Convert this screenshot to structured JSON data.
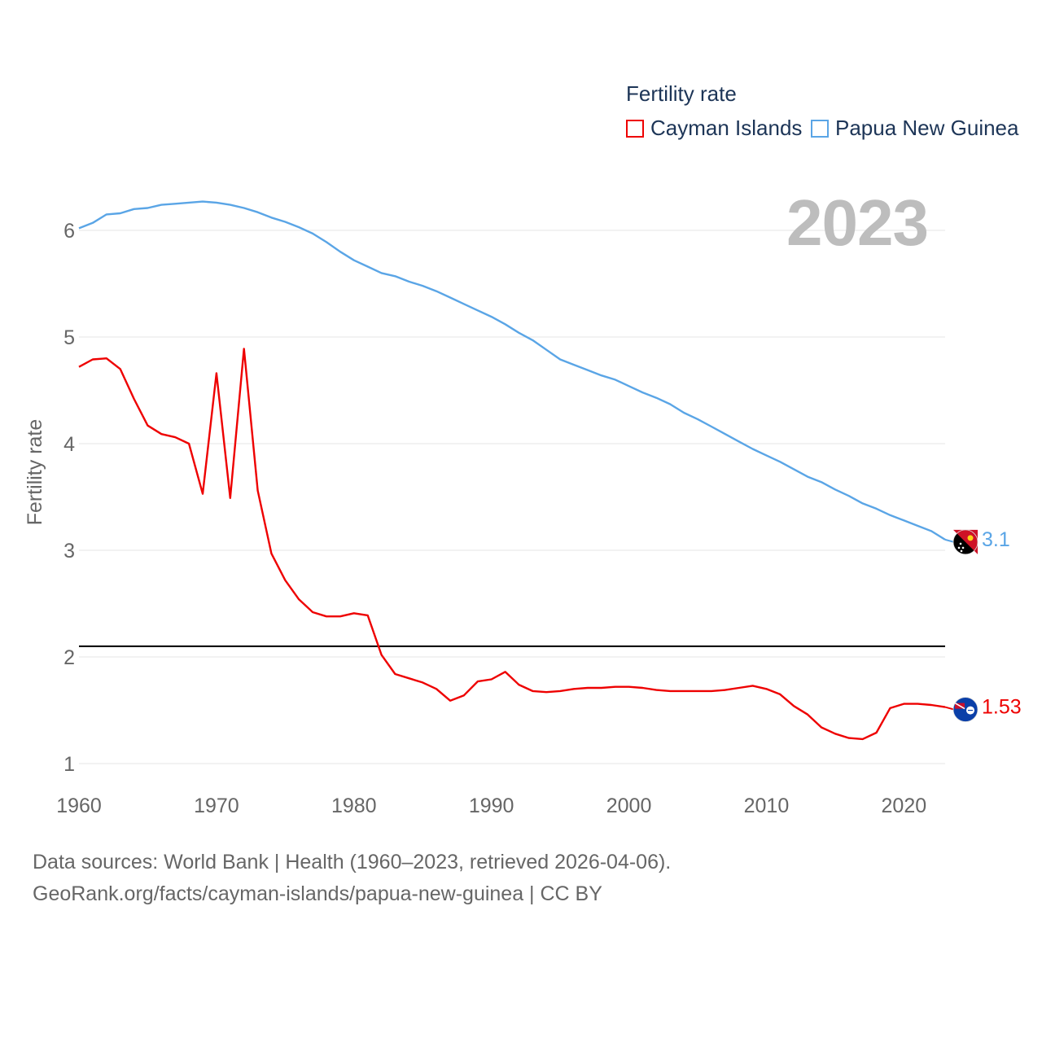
{
  "legend": {
    "title": "Fertility rate",
    "items": [
      {
        "label": "Cayman Islands",
        "color": "#ee0000"
      },
      {
        "label": "Papua New Guinea",
        "color": "#5aa5e6"
      }
    ]
  },
  "year_label": "2023",
  "footer": {
    "line1": "Data sources: World Bank | Health (1960–2023, retrieved 2026-04-06).",
    "line2": "GeoRank.org/facts/cayman-islands/papua-new-guinea | CC BY"
  },
  "chart_data": {
    "type": "line",
    "title": "Fertility rate",
    "xlabel": "",
    "ylabel": "Fertility rate",
    "xlim": [
      1960,
      2023
    ],
    "ylim": [
      1,
      6.5
    ],
    "x_ticks": [
      1960,
      1970,
      1980,
      1990,
      2000,
      2010,
      2020
    ],
    "y_ticks": [
      1,
      2,
      3,
      4,
      5,
      6
    ],
    "grid": true,
    "reference_line": {
      "y": 2.1,
      "color": "#000000"
    },
    "x": [
      1960,
      1961,
      1962,
      1963,
      1964,
      1965,
      1966,
      1967,
      1968,
      1969,
      1970,
      1971,
      1972,
      1973,
      1974,
      1975,
      1976,
      1977,
      1978,
      1979,
      1980,
      1981,
      1982,
      1983,
      1984,
      1985,
      1986,
      1987,
      1988,
      1989,
      1990,
      1991,
      1992,
      1993,
      1994,
      1995,
      1996,
      1997,
      1998,
      1999,
      2000,
      2001,
      2002,
      2003,
      2004,
      2005,
      2006,
      2007,
      2008,
      2009,
      2010,
      2011,
      2012,
      2013,
      2014,
      2015,
      2016,
      2017,
      2018,
      2019,
      2020,
      2021,
      2022,
      2023
    ],
    "series": [
      {
        "name": "Cayman Islands",
        "color": "#ee0000",
        "end_label": "1.53",
        "values": [
          4.72,
          4.79,
          4.8,
          4.7,
          4.42,
          4.17,
          4.09,
          4.06,
          4.0,
          3.53,
          4.66,
          3.49,
          4.89,
          3.56,
          2.97,
          2.72,
          2.54,
          2.42,
          2.38,
          2.38,
          2.41,
          2.39,
          2.02,
          1.84,
          1.8,
          1.76,
          1.7,
          1.59,
          1.64,
          1.77,
          1.79,
          1.86,
          1.74,
          1.68,
          1.67,
          1.68,
          1.7,
          1.71,
          1.71,
          1.72,
          1.72,
          1.71,
          1.69,
          1.68,
          1.68,
          1.68,
          1.68,
          1.69,
          1.71,
          1.73,
          1.7,
          1.65,
          1.54,
          1.46,
          1.34,
          1.28,
          1.24,
          1.23,
          1.29,
          1.52,
          1.56,
          1.56,
          1.55,
          1.53
        ]
      },
      {
        "name": "Papua New Guinea",
        "color": "#5aa5e6",
        "end_label": "3.1",
        "values": [
          6.02,
          6.07,
          6.15,
          6.16,
          6.2,
          6.21,
          6.24,
          6.25,
          6.26,
          6.27,
          6.26,
          6.24,
          6.21,
          6.17,
          6.12,
          6.08,
          6.03,
          5.97,
          5.89,
          5.8,
          5.72,
          5.66,
          5.6,
          5.57,
          5.52,
          5.48,
          5.43,
          5.37,
          5.31,
          5.25,
          5.19,
          5.12,
          5.04,
          4.97,
          4.88,
          4.79,
          4.74,
          4.69,
          4.64,
          4.6,
          4.54,
          4.48,
          4.43,
          4.37,
          4.29,
          4.23,
          4.16,
          4.09,
          4.02,
          3.95,
          3.89,
          3.83,
          3.76,
          3.69,
          3.64,
          3.57,
          3.51,
          3.44,
          3.39,
          3.33,
          3.28,
          3.23,
          3.18,
          3.1
        ]
      }
    ]
  }
}
